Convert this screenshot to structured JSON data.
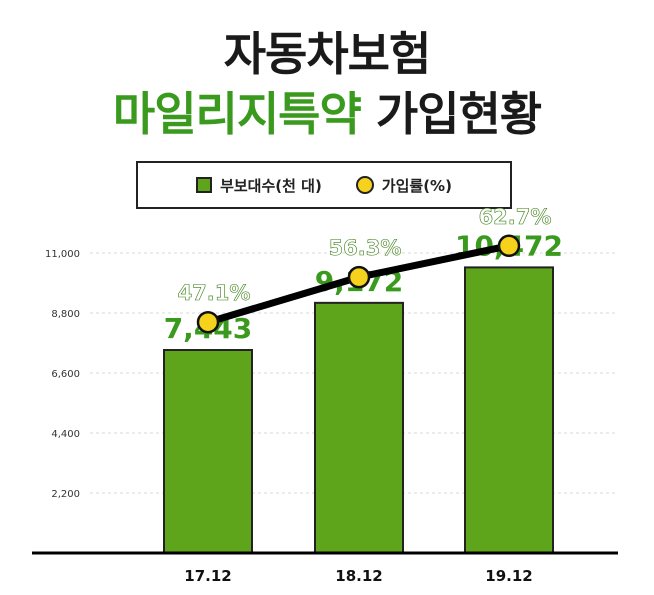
{
  "title": {
    "line1": "자동차보험",
    "line2_green": "마일리지특약",
    "line2_dark": "가입현황"
  },
  "legend": {
    "bar_label": "부보대수(천 대)",
    "line_label": "가입률(%)"
  },
  "colors": {
    "bar": "#5fa51c",
    "bar_value_label": "#3a9a1e",
    "line": "#000000",
    "marker": "#f6d21c",
    "grid": "#d9d9d9"
  },
  "chart_data": {
    "type": "bar",
    "categories": [
      "17.12",
      "18.12",
      "19.12"
    ],
    "series": [
      {
        "name": "부보대수(천 대)",
        "type": "bar",
        "values": [
          7443,
          9172,
          10472
        ],
        "labels": [
          "7,443",
          "9,172",
          "10,472"
        ]
      },
      {
        "name": "가입률(%)",
        "type": "line",
        "values": [
          47.1,
          56.3,
          62.7
        ],
        "labels": [
          "47.1%",
          "56.3%",
          "62.7%"
        ]
      }
    ],
    "y_ticks": [
      "2,200",
      "4,400",
      "6,600",
      "8,800",
      "11,000"
    ],
    "y_tick_values": [
      2200,
      4400,
      6600,
      8800,
      11000
    ],
    "ylim": [
      0,
      11000
    ],
    "grid": true,
    "legend_position": "top"
  }
}
